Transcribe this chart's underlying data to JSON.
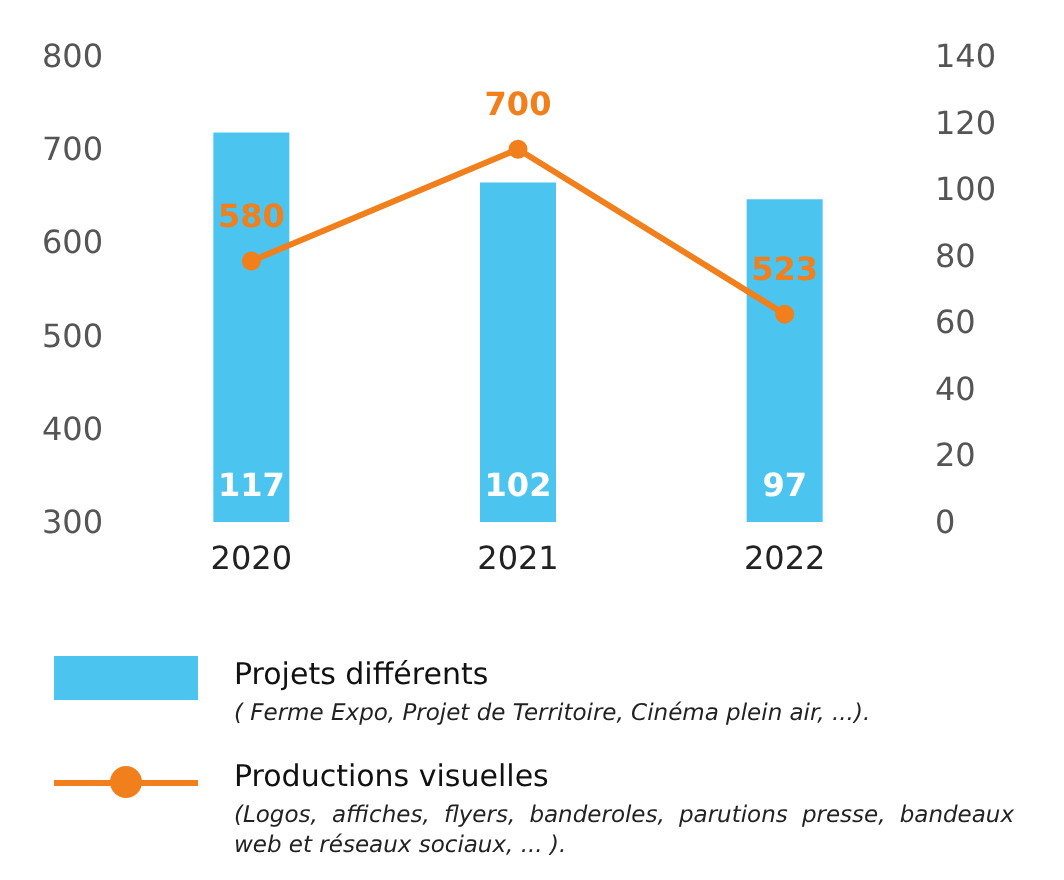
{
  "chart_data": {
    "type": "bar",
    "categories": [
      "2020",
      "2021",
      "2022"
    ],
    "series": [
      {
        "name": "Projets différents",
        "axis": "y2",
        "color": "#4cc4f0",
        "values": [
          117,
          102,
          97
        ]
      },
      {
        "name": "Productions visuelles",
        "type": "line",
        "color": "#f07f1c",
        "values": [
          580,
          700,
          523
        ]
      }
    ],
    "ylim": [
      300,
      800
    ],
    "yticks": [
      300,
      400,
      500,
      600,
      700,
      800
    ],
    "y2lim": [
      0,
      140
    ],
    "y2ticks": [
      0,
      20,
      40,
      60,
      80,
      100,
      120,
      140
    ],
    "data_labels": true,
    "legend": "bottom",
    "marker": "circle",
    "annotations": [
      "( Ferme Expo, Projet de Territoire, Cinéma plein air,  ...).",
      "(Logos, affiches, flyers, banderoles, parutions presse, bandeaux web et réseaux sociaux, ... )."
    ]
  }
}
